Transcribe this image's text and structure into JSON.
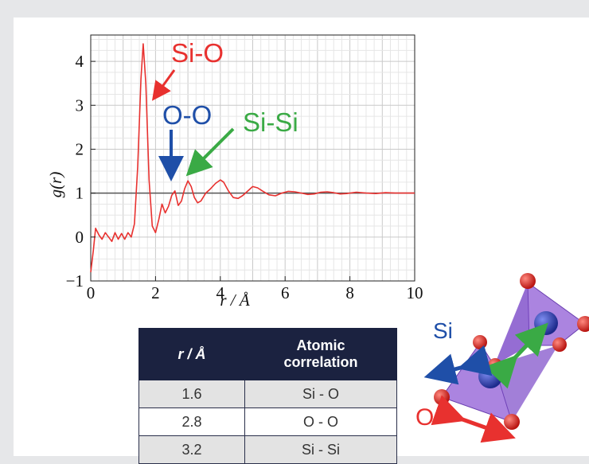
{
  "chart_data": {
    "type": "line",
    "xlabel": "r / Å",
    "ylabel": "g(r)",
    "xlim": [
      0,
      10
    ],
    "ylim": [
      -1,
      4.6
    ],
    "x_ticks": [
      "0",
      "2",
      "4",
      "6",
      "8",
      "10"
    ],
    "y_ticks": [
      "−1",
      "0",
      "1",
      "2",
      "3",
      "4"
    ],
    "grid": true,
    "reference_line": {
      "y": 1,
      "color": "#555555"
    },
    "series": [
      {
        "color": "#e8312f",
        "x": [
          0.0,
          0.08,
          0.15,
          0.25,
          0.35,
          0.45,
          0.55,
          0.65,
          0.75,
          0.85,
          0.95,
          1.05,
          1.15,
          1.25,
          1.35,
          1.45,
          1.55,
          1.62,
          1.7,
          1.8,
          1.9,
          2.0,
          2.1,
          2.2,
          2.3,
          2.4,
          2.5,
          2.6,
          2.7,
          2.8,
          2.9,
          3.0,
          3.1,
          3.2,
          3.3,
          3.4,
          3.55,
          3.7,
          3.85,
          4.0,
          4.1,
          4.25,
          4.4,
          4.55,
          4.7,
          4.85,
          5.0,
          5.15,
          5.3,
          5.5,
          5.7,
          5.9,
          6.1,
          6.3,
          6.5,
          6.7,
          6.9,
          7.1,
          7.3,
          7.5,
          7.7,
          7.9,
          8.2,
          8.5,
          8.8,
          9.1,
          9.4,
          9.7,
          10.0
        ],
        "y": [
          -0.8,
          -0.3,
          0.2,
          0.05,
          -0.05,
          0.1,
          0.0,
          -0.1,
          0.1,
          -0.05,
          0.08,
          -0.05,
          0.1,
          0.0,
          0.3,
          1.6,
          3.6,
          4.4,
          3.5,
          1.3,
          0.25,
          0.1,
          0.4,
          0.75,
          0.55,
          0.7,
          0.95,
          1.05,
          0.72,
          0.82,
          1.1,
          1.28,
          1.15,
          0.9,
          0.78,
          0.82,
          1.0,
          1.1,
          1.22,
          1.3,
          1.25,
          1.05,
          0.9,
          0.88,
          0.95,
          1.05,
          1.15,
          1.12,
          1.05,
          0.96,
          0.94,
          1.0,
          1.04,
          1.03,
          1.0,
          0.97,
          0.98,
          1.02,
          1.03,
          1.01,
          0.98,
          0.99,
          1.02,
          1.0,
          0.99,
          1.01,
          1.0,
          1.0,
          1.0
        ]
      }
    ],
    "annotations": [
      {
        "text": "Si-O",
        "color": "#e8312f"
      },
      {
        "text": "O-O",
        "color": "#1f4fa8"
      },
      {
        "text": "Si-Si",
        "color": "#3aaa45"
      }
    ]
  },
  "table": {
    "headers": [
      "r / Å",
      "Atomic\ncorrelation"
    ],
    "header_lines": [
      "Atomic",
      "correlation"
    ],
    "rows": [
      {
        "r": "1.6",
        "pair": "Si - O"
      },
      {
        "r": "2.8",
        "pair": "O - O"
      },
      {
        "r": "3.2",
        "pair": "Si - Si"
      }
    ]
  },
  "structure": {
    "labels": {
      "si": "Si",
      "o": "O"
    },
    "colors": {
      "si_label": "#1f4fa8",
      "o_label": "#e8312f",
      "oxygen": "#d7241d",
      "silicon": "#3347b8",
      "tetrahedron": "#8f5bd6",
      "arrow_si_si": "#3aaa45",
      "arrow_si": "#1f4fa8",
      "arrow_o": "#e8312f"
    }
  }
}
